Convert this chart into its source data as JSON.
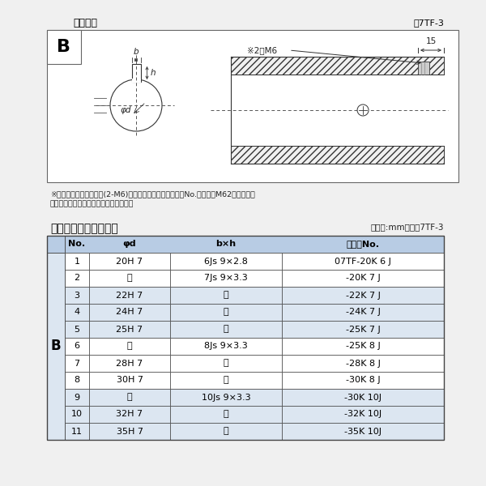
{
  "title_diagram": "軸穴形状",
  "fig_label": "図7TF-3",
  "table_title": "軸穴形状コード一覧表",
  "table_unit": "（単位:mm）　表7TF-3",
  "note1": "※セットボルト用タップ(2-M6)が必要な場合は右記コードNo.の末尾にM62を付ける。",
  "note2": "（セットボルトは付属されています。）",
  "col_headers": [
    "No.",
    "φd",
    "b×h",
    "コードNo."
  ],
  "col_b_label": "B",
  "ditto": "〃",
  "rows": [
    [
      "1",
      "20H 7",
      "6Js 9×2.8",
      "07TF-20K 6 J"
    ],
    [
      "2",
      "〃",
      "7Js 9×3.3",
      "-20K 7 J"
    ],
    [
      "3",
      "22H 7",
      "〃",
      "-22K 7 J"
    ],
    [
      "4",
      "24H 7",
      "〃",
      "-24K 7 J"
    ],
    [
      "5",
      "25H 7",
      "〃",
      "-25K 7 J"
    ],
    [
      "6",
      "〃",
      "8Js 9×3.3",
      "-25K 8 J"
    ],
    [
      "7",
      "28H 7",
      "〃",
      "-28K 8 J"
    ],
    [
      "8",
      "30H 7",
      "〃",
      "-30K 8 J"
    ],
    [
      "9",
      "〃",
      "10Js 9×3.3",
      "-30K 10J"
    ],
    [
      "10",
      "32H 7",
      "〃",
      "-32K 10J"
    ],
    [
      "11",
      "35H 7",
      "〃",
      "-35K 10J"
    ]
  ],
  "header_bg": "#b8cce4",
  "row_bg_light": "#dce6f1",
  "row_bg_white": "#ffffff",
  "border_color": "#444444",
  "text_color": "#000000",
  "page_bg": "#f0f0f0"
}
